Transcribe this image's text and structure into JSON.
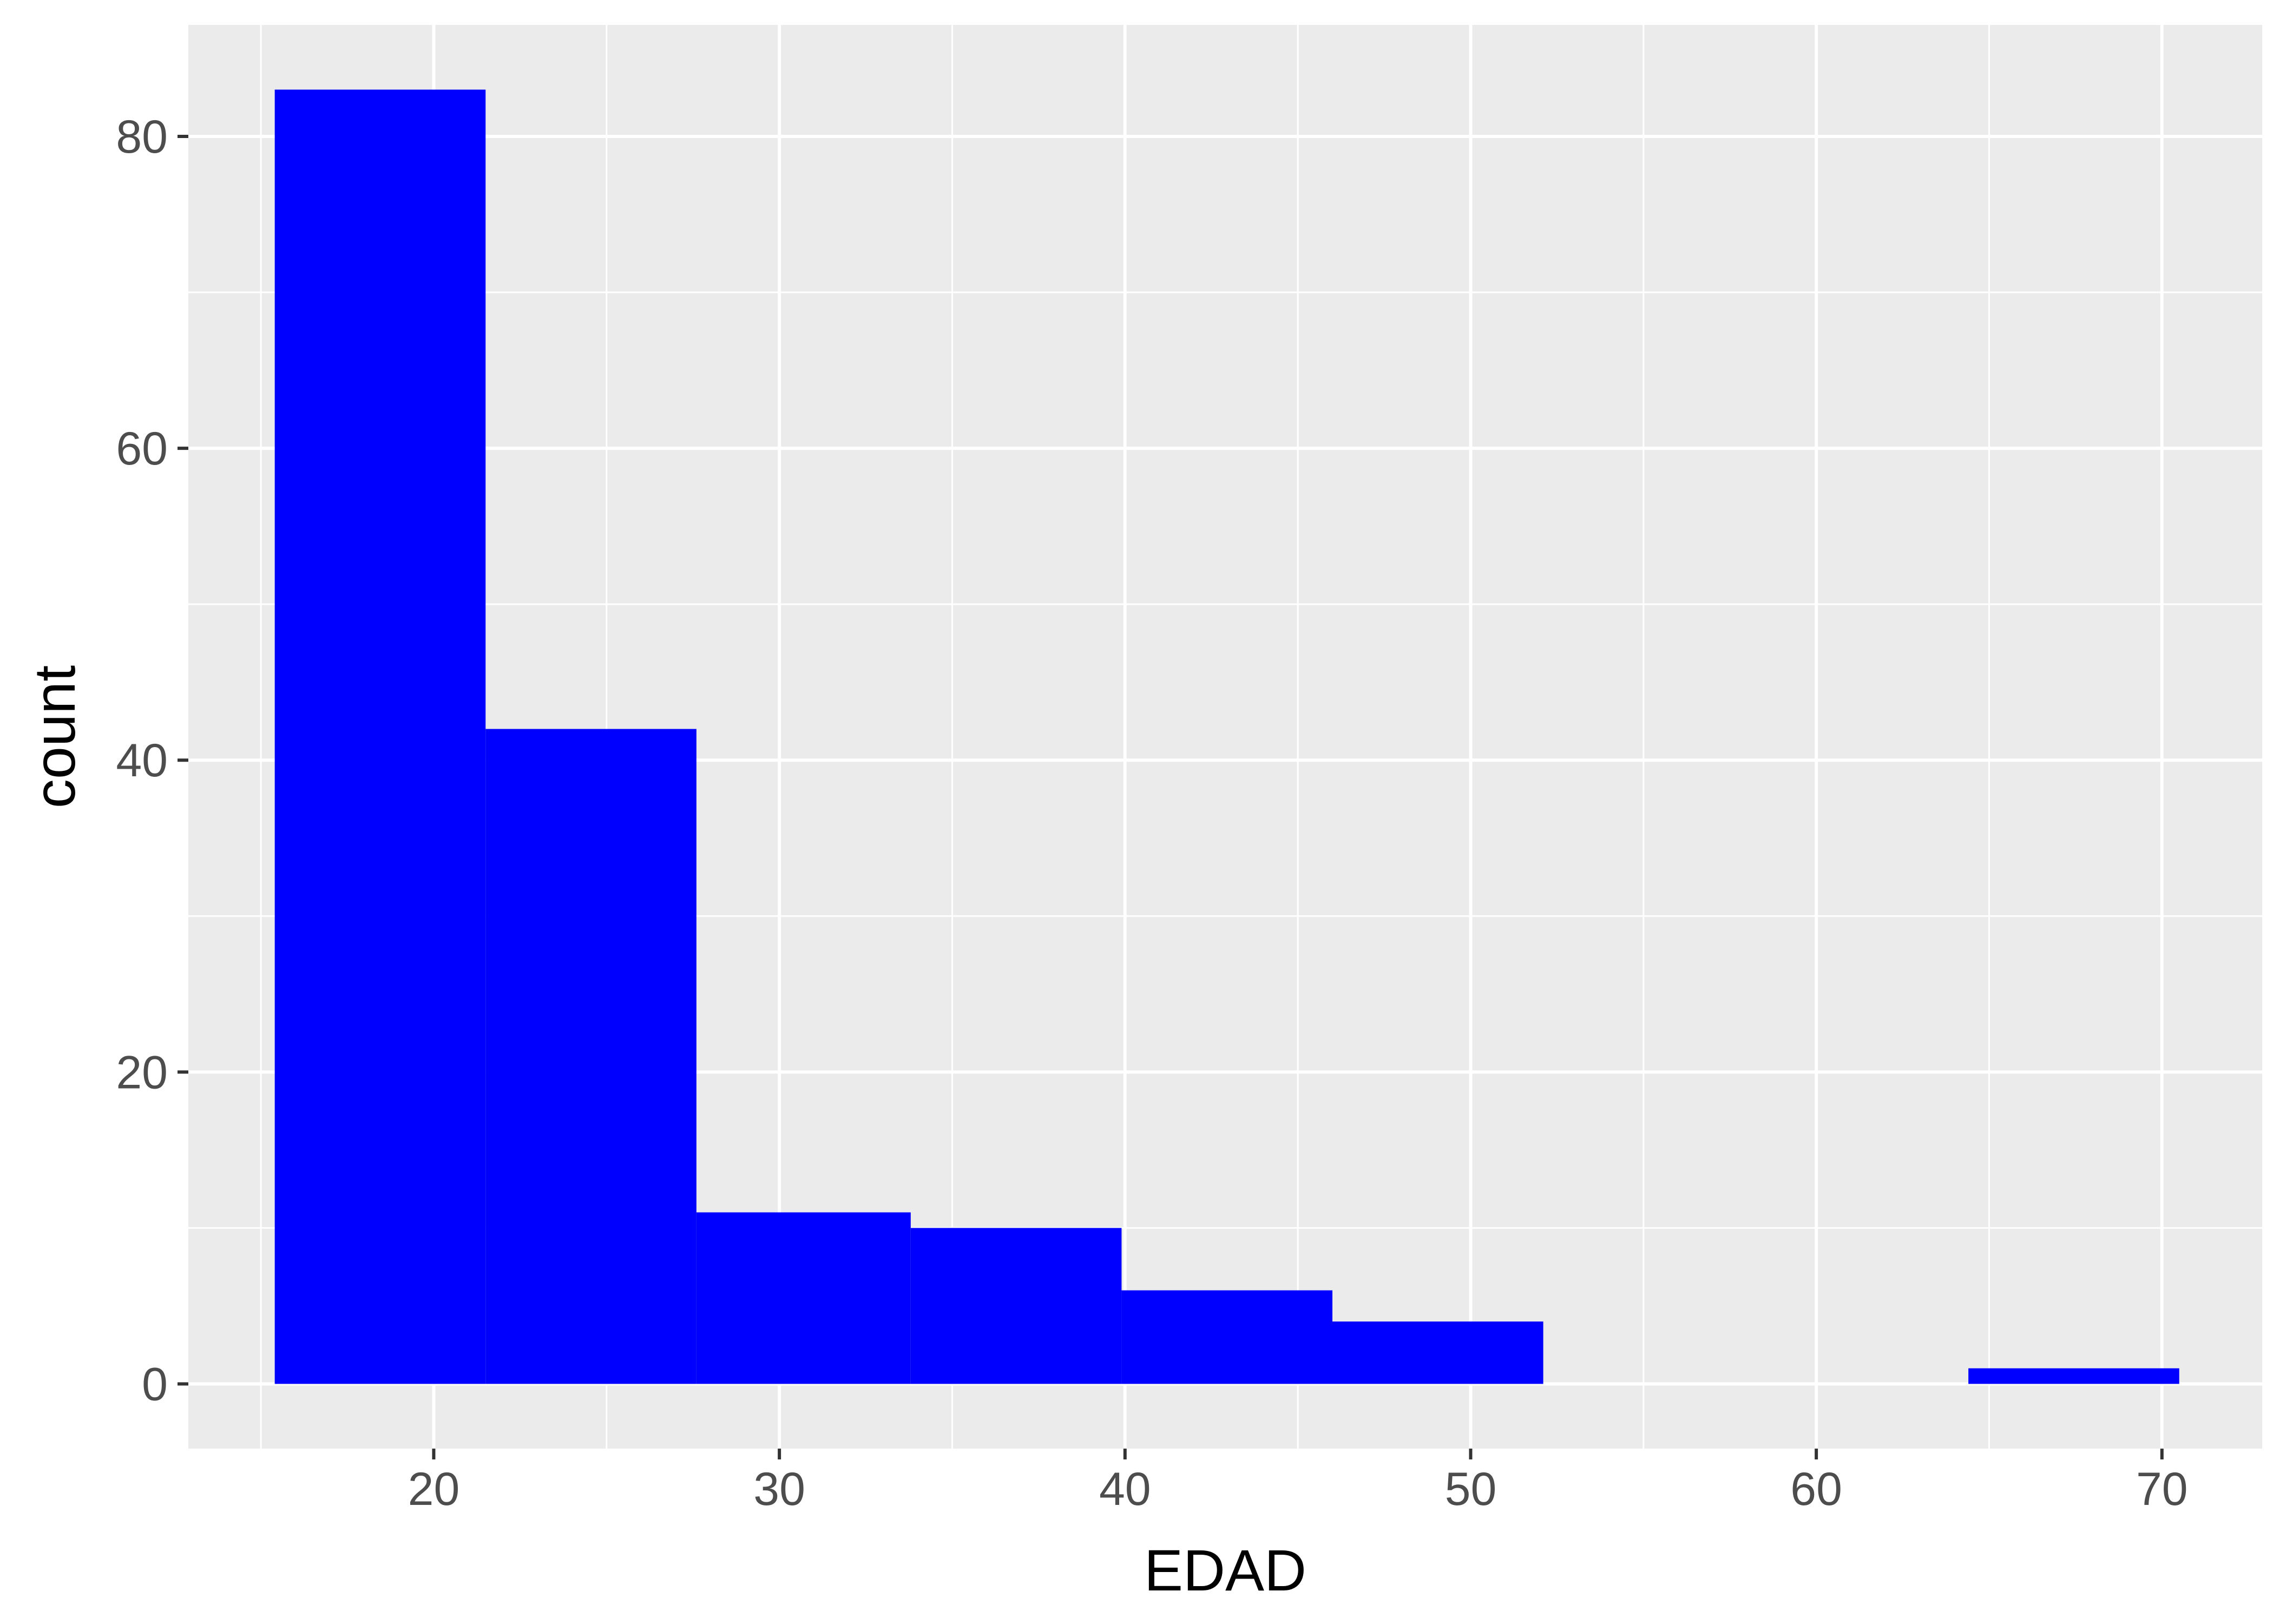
{
  "chart_data": {
    "type": "bar",
    "subtype": "histogram",
    "xlabel": "EDAD",
    "ylabel": "count",
    "xlim": [
      12.9,
      72.9
    ],
    "ylim": [
      -4.15,
      87.15
    ],
    "x_ticks": [
      20,
      30,
      40,
      50,
      60,
      70
    ],
    "x_tick_labels": [
      "20",
      "30",
      "40",
      "50",
      "60",
      "70"
    ],
    "y_ticks": [
      0,
      20,
      40,
      60,
      80
    ],
    "y_tick_labels": [
      "0",
      "20",
      "40",
      "60",
      "80"
    ],
    "bins": [
      {
        "x0": 15.4,
        "x1": 21.5,
        "count": 83
      },
      {
        "x0": 21.5,
        "x1": 27.6,
        "count": 42
      },
      {
        "x0": 27.6,
        "x1": 33.8,
        "count": 11
      },
      {
        "x0": 33.8,
        "x1": 39.9,
        "count": 10
      },
      {
        "x0": 39.9,
        "x1": 46.0,
        "count": 6
      },
      {
        "x0": 46.0,
        "x1": 52.1,
        "count": 4
      },
      {
        "x0": 52.1,
        "x1": 58.2,
        "count": 0
      },
      {
        "x0": 58.2,
        "x1": 64.4,
        "count": 0
      },
      {
        "x0": 64.4,
        "x1": 70.5,
        "count": 1
      }
    ],
    "grid": true,
    "colors": {
      "bar": "#0000ff",
      "panel": "#ebebeb",
      "grid": "#ffffff"
    }
  }
}
